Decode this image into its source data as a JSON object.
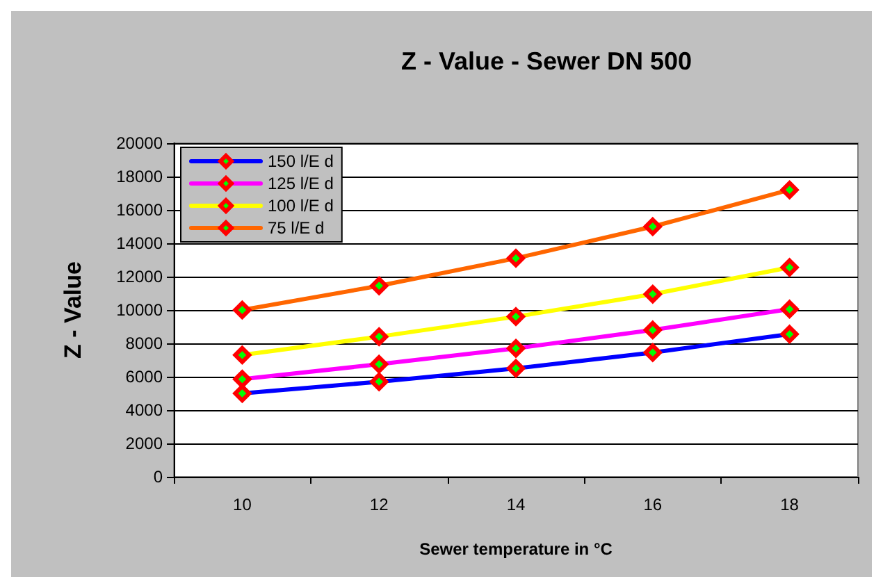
{
  "chart_data": {
    "type": "line",
    "title": "Z - Value - Sewer DN 500",
    "xlabel": "Sewer temperature in °C",
    "ylabel": "Z - Value",
    "categories": [
      "10",
      "12",
      "14",
      "16",
      "18"
    ],
    "series": [
      {
        "name": "150 l/E d",
        "color": "#0000ff",
        "values": [
          5000,
          5700,
          6500,
          7450,
          8550
        ]
      },
      {
        "name": "125 l/E d",
        "color": "#ff00ff",
        "values": [
          5850,
          6750,
          7700,
          8800,
          10050
        ]
      },
      {
        "name": "100 l/E d",
        "color": "#ffff00",
        "values": [
          7300,
          8400,
          9600,
          10950,
          12550
        ]
      },
      {
        "name": "75 l/E d",
        "color": "#ff6600",
        "values": [
          10000,
          11450,
          13100,
          15000,
          17200
        ]
      }
    ],
    "ylim": [
      0,
      20000
    ],
    "yticks": [
      0,
      2000,
      4000,
      6000,
      8000,
      10000,
      12000,
      14000,
      16000,
      18000,
      20000
    ],
    "grid": "y",
    "legend": "top left",
    "marker": "diamond",
    "line_style": "solid"
  }
}
